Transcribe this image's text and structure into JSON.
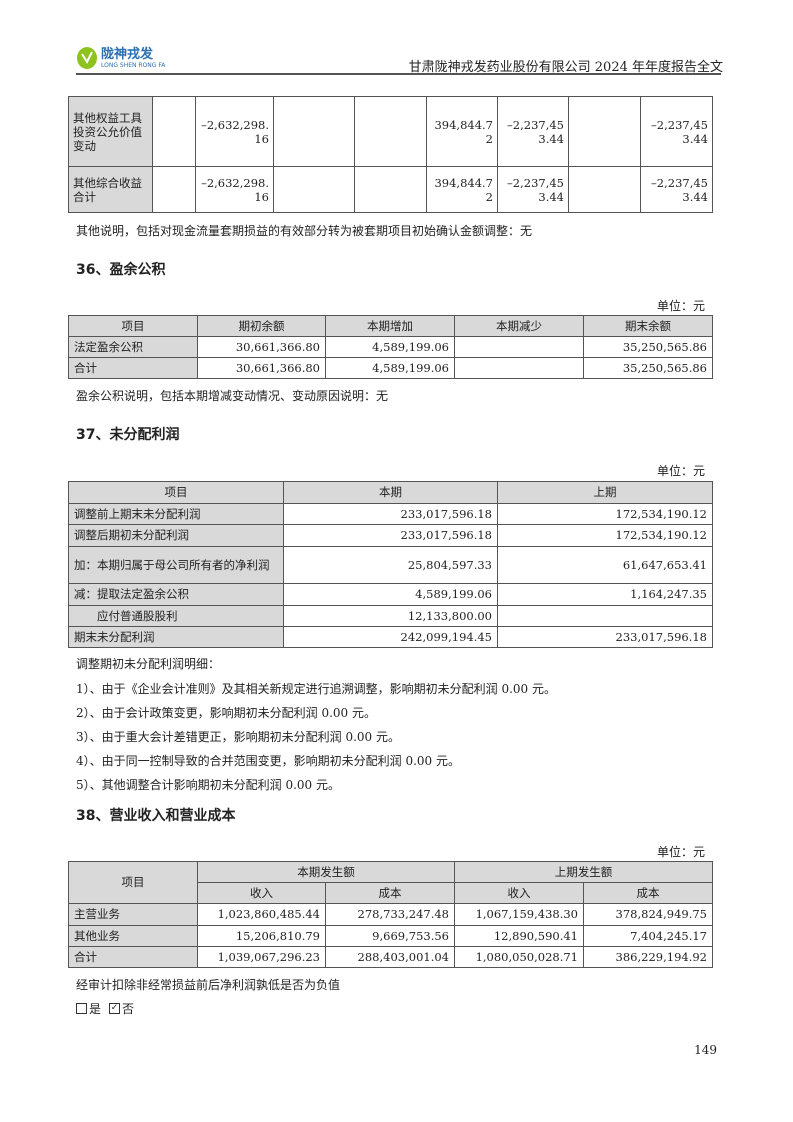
{
  "header": {
    "logo_text": "陇神戎发",
    "logo_sub": "LONG SHEN RONG FA",
    "doc_title": "甘肃陇神戎发药业股份有限公司 2024 年年度报告全文",
    "logo_color": "#8dc21f"
  },
  "table_oci": {
    "rows": [
      {
        "label": "其他权益工具投资公允价值变动",
        "c1": "",
        "c2": "–2,632,298.16",
        "c3": "",
        "c4": "",
        "c5": "394,844.72",
        "c6": "–2,237,453.44",
        "c7": "",
        "c8": "–2,237,453.44"
      },
      {
        "label": "其他综合收益合计",
        "c1": "",
        "c2": "–2,632,298.16",
        "c3": "",
        "c4": "",
        "c5": "394,844.72",
        "c6": "–2,237,453.44",
        "c7": "",
        "c8": "–2,237,453.44"
      }
    ],
    "note": "其他说明，包括对现金流量套期损益的有效部分转为被套期项目初始确认金额调整：无"
  },
  "s36": {
    "title": "36、盈余公积",
    "unit": "单位：元",
    "headers": [
      "项目",
      "期初余额",
      "本期增加",
      "本期减少",
      "期末余额"
    ],
    "rows": [
      [
        "法定盈余公积",
        "30,661,366.80",
        "4,589,199.06",
        "",
        "35,250,565.86"
      ],
      [
        "合计",
        "30,661,366.80",
        "4,589,199.06",
        "",
        "35,250,565.86"
      ]
    ],
    "note": "盈余公积说明，包括本期增减变动情况、变动原因说明：无"
  },
  "s37": {
    "title": "37、未分配利润",
    "unit": "单位：元",
    "headers": [
      "项目",
      "本期",
      "上期"
    ],
    "rows": [
      [
        "调整前上期末未分配利润",
        "233,017,596.18",
        "172,534,190.12"
      ],
      [
        "调整后期初未分配利润",
        "233,017,596.18",
        "172,534,190.12"
      ],
      [
        "加：本期归属于母公司所有者的净利润",
        "25,804,597.33",
        "61,647,653.41"
      ],
      [
        "减：提取法定盈余公积",
        "4,589,199.06",
        "1,164,247.35"
      ],
      [
        "应付普通股股利",
        "12,133,800.00",
        ""
      ],
      [
        "期末未分配利润",
        "242,099,194.45",
        "233,017,596.18"
      ]
    ],
    "detail_title": "调整期初未分配利润明细：",
    "details": [
      "1）、由于《企业会计准则》及其相关新规定进行追溯调整，影响期初未分配利润 0.00 元。",
      "2）、由于会计政策变更，影响期初未分配利润 0.00 元。",
      "3）、由于重大会计差错更正，影响期初未分配利润 0.00 元。",
      "4）、由于同一控制导致的合并范围变更，影响期初未分配利润 0.00 元。",
      "5）、其他调整合计影响期初未分配利润 0.00 元。"
    ]
  },
  "s38": {
    "title": "38、营业收入和营业成本",
    "unit": "单位：元",
    "h_item": "项目",
    "h_cur": "本期发生额",
    "h_prev": "上期发生额",
    "h_rev": "收入",
    "h_cost": "成本",
    "rows": [
      [
        "主营业务",
        "1,023,860,485.44",
        "278,733,247.48",
        "1,067,159,438.30",
        "378,824,949.75"
      ],
      [
        "其他业务",
        "15,206,810.79",
        "9,669,753.56",
        "12,890,590.41",
        "7,404,245.17"
      ],
      [
        "合计",
        "1,039,067,296.23",
        "288,403,001.04",
        "1,080,050,028.71",
        "386,229,194.92"
      ]
    ],
    "question": "经审计扣除非经常损益前后净利润孰低是否为负值",
    "opt_yes": "是",
    "opt_no": "否",
    "selected": "否"
  },
  "page_number": "149"
}
